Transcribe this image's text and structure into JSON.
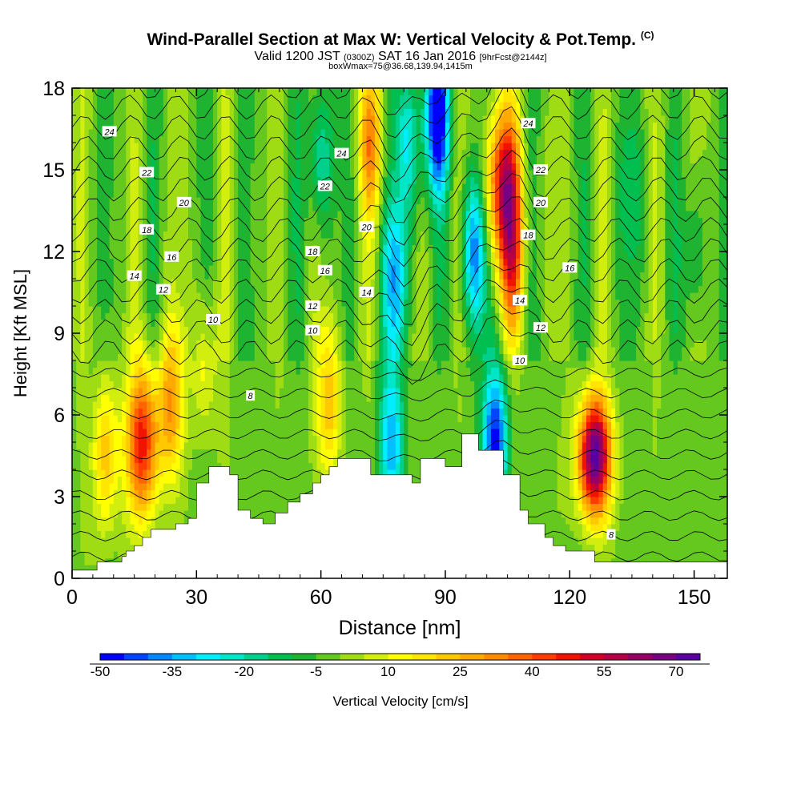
{
  "title": {
    "main": "Wind-Parallel Section at Max W: Vertical Velocity & Pot.Temp.",
    "copyright": "(C)",
    "valid_a": "Valid 1200 JST",
    "valid_small": "(0300Z)",
    "valid_b": "SAT 16 Jan 2016",
    "valid_fcst": "[9hrFcst@2144z]",
    "box": "boxWmax=75@36.68,139.94,1415m"
  },
  "chart_data": {
    "type": "heatmap",
    "xlabel": "Distance [nm]",
    "ylabel": "Height [Kft MSL]",
    "xlim": [
      0,
      158
    ],
    "ylim": [
      0,
      18
    ],
    "xticks": [
      0,
      30,
      60,
      90,
      120,
      150
    ],
    "yticks": [
      0,
      3,
      6,
      9,
      12,
      15,
      18
    ],
    "colorbar": {
      "label": "Vertical Velocity [cm/s]",
      "tick_labels": [
        "-50",
        "-35",
        "-20",
        "-5",
        "10",
        "25",
        "40",
        "55",
        "70"
      ],
      "min": -50,
      "step": 5,
      "colors": [
        "#0000ff",
        "#0044ff",
        "#0088ff",
        "#00c0ff",
        "#00eeff",
        "#00e6c8",
        "#00d08c",
        "#00be50",
        "#1eb432",
        "#64c81e",
        "#a0dc14",
        "#d2ee0f",
        "#ffff00",
        "#ffe600",
        "#ffc800",
        "#ffaa00",
        "#ff8c00",
        "#ff6400",
        "#ff3c00",
        "#f01400",
        "#d20028",
        "#b40046",
        "#960064",
        "#780082",
        "#5a00a0"
      ]
    },
    "terrain": {
      "x": [
        0,
        6,
        6,
        12,
        12,
        13,
        13,
        15,
        15,
        17,
        17,
        19,
        19,
        25,
        25,
        28,
        28,
        30,
        30,
        33,
        33,
        38,
        38,
        40,
        40,
        43,
        43,
        46,
        46,
        49,
        49,
        52,
        52,
        55,
        55,
        58,
        58,
        60,
        60,
        62,
        62,
        64,
        64,
        72,
        72,
        82,
        82,
        84,
        84,
        90,
        90,
        94,
        94,
        98,
        98,
        104,
        104,
        108,
        108,
        110,
        110,
        114,
        114,
        116,
        116,
        119,
        119,
        126,
        126,
        158
      ],
      "y": [
        0.3,
        0.3,
        0.6,
        0.6,
        0.8,
        0.8,
        1.0,
        1.0,
        1.2,
        1.2,
        1.5,
        1.5,
        1.8,
        1.8,
        2.0,
        2.0,
        2.2,
        2.2,
        3.5,
        3.5,
        4.1,
        4.1,
        3.8,
        3.8,
        2.5,
        2.5,
        2.2,
        2.2,
        2.0,
        2.0,
        2.4,
        2.4,
        2.8,
        2.8,
        3.1,
        3.1,
        3.5,
        3.5,
        3.8,
        3.8,
        4.1,
        4.1,
        4.4,
        4.4,
        3.8,
        3.8,
        3.5,
        3.5,
        4.4,
        4.4,
        4.1,
        4.1,
        5.3,
        5.3,
        4.7,
        4.7,
        3.8,
        3.8,
        2.5,
        2.5,
        2.0,
        2.0,
        1.5,
        1.5,
        1.2,
        1.2,
        1.0,
        1.0,
        0.6,
        0.6
      ]
    },
    "contour_labels": [
      {
        "text": "24",
        "x": 9,
        "y": 16.4
      },
      {
        "text": "24",
        "x": 65,
        "y": 15.6
      },
      {
        "text": "24",
        "x": 110,
        "y": 16.7
      },
      {
        "text": "22",
        "x": 18,
        "y": 14.9
      },
      {
        "text": "22",
        "x": 61,
        "y": 14.4
      },
      {
        "text": "22",
        "x": 113,
        "y": 15.0
      },
      {
        "text": "20",
        "x": 27,
        "y": 13.8
      },
      {
        "text": "20",
        "x": 71,
        "y": 12.9
      },
      {
        "text": "20",
        "x": 113,
        "y": 13.8
      },
      {
        "text": "18",
        "x": 18,
        "y": 12.8
      },
      {
        "text": "18",
        "x": 58,
        "y": 12.0
      },
      {
        "text": "18",
        "x": 110,
        "y": 12.6
      },
      {
        "text": "16",
        "x": 24,
        "y": 11.8
      },
      {
        "text": "16",
        "x": 61,
        "y": 11.3
      },
      {
        "text": "16",
        "x": 120,
        "y": 11.4
      },
      {
        "text": "14",
        "x": 15,
        "y": 11.1
      },
      {
        "text": "14",
        "x": 71,
        "y": 10.5
      },
      {
        "text": "14",
        "x": 108,
        "y": 10.2
      },
      {
        "text": "12",
        "x": 22,
        "y": 10.6
      },
      {
        "text": "12",
        "x": 58,
        "y": 10.0
      },
      {
        "text": "12",
        "x": 113,
        "y": 9.2
      },
      {
        "text": "10",
        "x": 34,
        "y": 9.5
      },
      {
        "text": "10",
        "x": 58,
        "y": 9.1
      },
      {
        "text": "10",
        "x": 108,
        "y": 8.0
      },
      {
        "text": "8",
        "x": 43,
        "y": 6.7
      },
      {
        "text": "8",
        "x": 130,
        "y": 1.6
      }
    ],
    "vertical_velocity_features": [
      {
        "x": 17,
        "y": 5.0,
        "w": 50
      },
      {
        "x": 24,
        "y": 6.5,
        "w": 30
      },
      {
        "x": 8,
        "y": 4.5,
        "w": 25
      },
      {
        "x": 32,
        "y": 8.0,
        "w": 15
      },
      {
        "x": 126,
        "y": 4.5,
        "w": 75
      },
      {
        "x": 104,
        "y": 14.5,
        "w": 55
      },
      {
        "x": 106,
        "y": 11.5,
        "w": 35
      },
      {
        "x": 72,
        "y": 16.0,
        "w": 30
      },
      {
        "x": 62,
        "y": 6.5,
        "w": 25
      },
      {
        "x": 88,
        "y": 17.0,
        "w": -50
      },
      {
        "x": 78,
        "y": 11.0,
        "w": -30
      },
      {
        "x": 77,
        "y": 5.0,
        "w": -30
      },
      {
        "x": 81,
        "y": 16.0,
        "w": -25
      },
      {
        "x": 60,
        "y": 15.5,
        "w": -20
      },
      {
        "x": 97,
        "y": 12.0,
        "w": -35
      },
      {
        "x": 102,
        "y": 5.0,
        "w": -45
      },
      {
        "x": 135,
        "y": 14.0,
        "w": -10
      },
      {
        "x": 150,
        "y": 12.0,
        "w": -10
      }
    ]
  }
}
